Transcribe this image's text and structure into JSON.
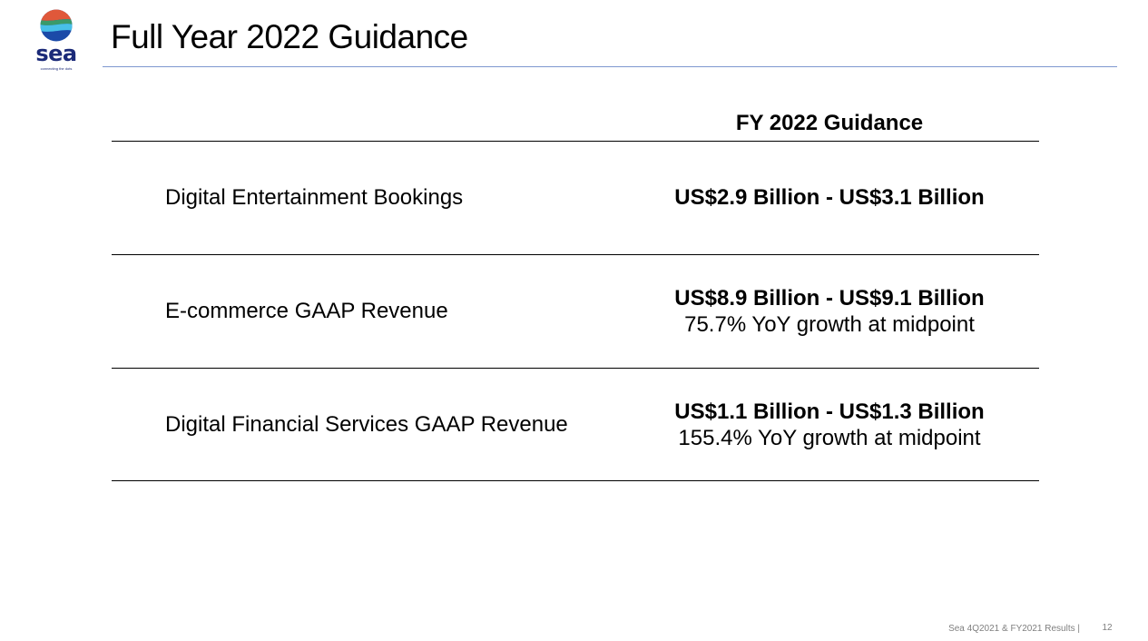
{
  "logo": {
    "wordmark": "sea",
    "tagline": "connecting the dots",
    "colors": [
      "#e0583a",
      "#3a9a6a",
      "#48c0e8",
      "#1b4aa8"
    ]
  },
  "slide": {
    "title": "Full Year 2022 Guidance",
    "accent_color": "#7e97cf"
  },
  "table": {
    "column_header": "FY 2022 Guidance",
    "rows": [
      {
        "label": "Digital Entertainment Bookings",
        "range": "US$2.9 Billion - US$3.1 Billion",
        "growth": ""
      },
      {
        "label": "E-commerce GAAP Revenue",
        "range": "US$8.9 Billion - US$9.1 Billion",
        "growth": "75.7% YoY growth at midpoint"
      },
      {
        "label": "Digital Financial Services GAAP Revenue",
        "range": "US$1.1 Billion - US$1.3 Billion",
        "growth": "155.4% YoY growth at midpoint"
      }
    ]
  },
  "footer": {
    "text": "Sea 4Q2021 & FY2021 Results |",
    "page_number": "12"
  }
}
